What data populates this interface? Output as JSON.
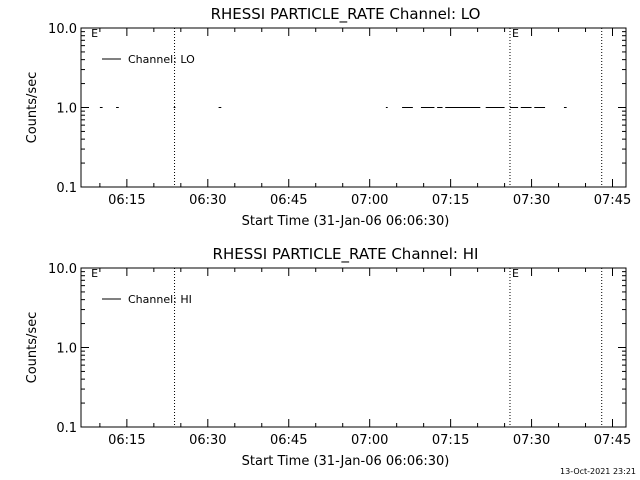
{
  "footer": {
    "timestamp": "13-Oct-2021 23:21"
  },
  "chart_data": [
    {
      "type": "line",
      "title": "RHESSI PARTICLE_RATE Channel: LO",
      "xlabel": "Start Time (31-Jan-06 06:06:30)",
      "ylabel": "Counts/sec",
      "yscale": "log",
      "ylim": [
        0.1,
        10.0
      ],
      "xlim": [
        "06:06:30",
        "07:47:30"
      ],
      "x_ticks": [
        "06:15",
        "06:30",
        "06:45",
        "07:00",
        "07:15",
        "07:30",
        "07:45"
      ],
      "y_ticks": [
        "10.0",
        "1.0",
        "0.1"
      ],
      "legend": {
        "position": "top-left",
        "entries": [
          "Channel: LO"
        ]
      },
      "markers": [
        {
          "time": "06:23:50",
          "label": ""
        },
        {
          "time": "06:08:00",
          "label": "E"
        },
        {
          "time": "07:26:00",
          "label": "E"
        },
        {
          "time": "07:43:00",
          "label": ""
        }
      ],
      "series": [
        {
          "name": "Channel: LO",
          "segments": [
            {
              "start": "06:10:00",
              "end": "06:10:30",
              "value": 1.0
            },
            {
              "start": "06:13:00",
              "end": "06:13:30",
              "value": 1.0
            },
            {
              "start": "06:23:40",
              "end": "06:24:00",
              "value": 1.0
            },
            {
              "start": "06:32:00",
              "end": "06:32:30",
              "value": 1.0
            },
            {
              "start": "07:03:00",
              "end": "07:03:20",
              "value": 1.0
            },
            {
              "start": "07:06:00",
              "end": "07:08:00",
              "value": 1.0
            },
            {
              "start": "07:09:30",
              "end": "07:12:00",
              "value": 1.0
            },
            {
              "start": "07:12:30",
              "end": "07:13:30",
              "value": 1.0
            },
            {
              "start": "07:14:00",
              "end": "07:20:30",
              "value": 1.0
            },
            {
              "start": "07:21:30",
              "end": "07:25:00",
              "value": 1.0
            },
            {
              "start": "07:26:00",
              "end": "07:27:30",
              "value": 1.0
            },
            {
              "start": "07:28:00",
              "end": "07:30:00",
              "value": 1.0
            },
            {
              "start": "07:30:30",
              "end": "07:32:30",
              "value": 1.0
            },
            {
              "start": "07:36:00",
              "end": "07:36:30",
              "value": 1.0
            }
          ]
        }
      ]
    },
    {
      "type": "line",
      "title": "RHESSI PARTICLE_RATE Channel: HI",
      "xlabel": "Start Time (31-Jan-06 06:06:30)",
      "ylabel": "Counts/sec",
      "yscale": "log",
      "ylim": [
        0.1,
        10.0
      ],
      "xlim": [
        "06:06:30",
        "07:47:30"
      ],
      "x_ticks": [
        "06:15",
        "06:30",
        "06:45",
        "07:00",
        "07:15",
        "07:30",
        "07:45"
      ],
      "y_ticks": [
        "10.0",
        "1.0",
        "0.1"
      ],
      "legend": {
        "position": "top-left",
        "entries": [
          "Channel: HI"
        ]
      },
      "markers": [
        {
          "time": "06:23:50",
          "label": ""
        },
        {
          "time": "06:08:00",
          "label": "E"
        },
        {
          "time": "07:26:00",
          "label": "E"
        },
        {
          "time": "07:43:00",
          "label": ""
        }
      ],
      "series": [
        {
          "name": "Channel: HI",
          "segments": []
        }
      ]
    }
  ]
}
